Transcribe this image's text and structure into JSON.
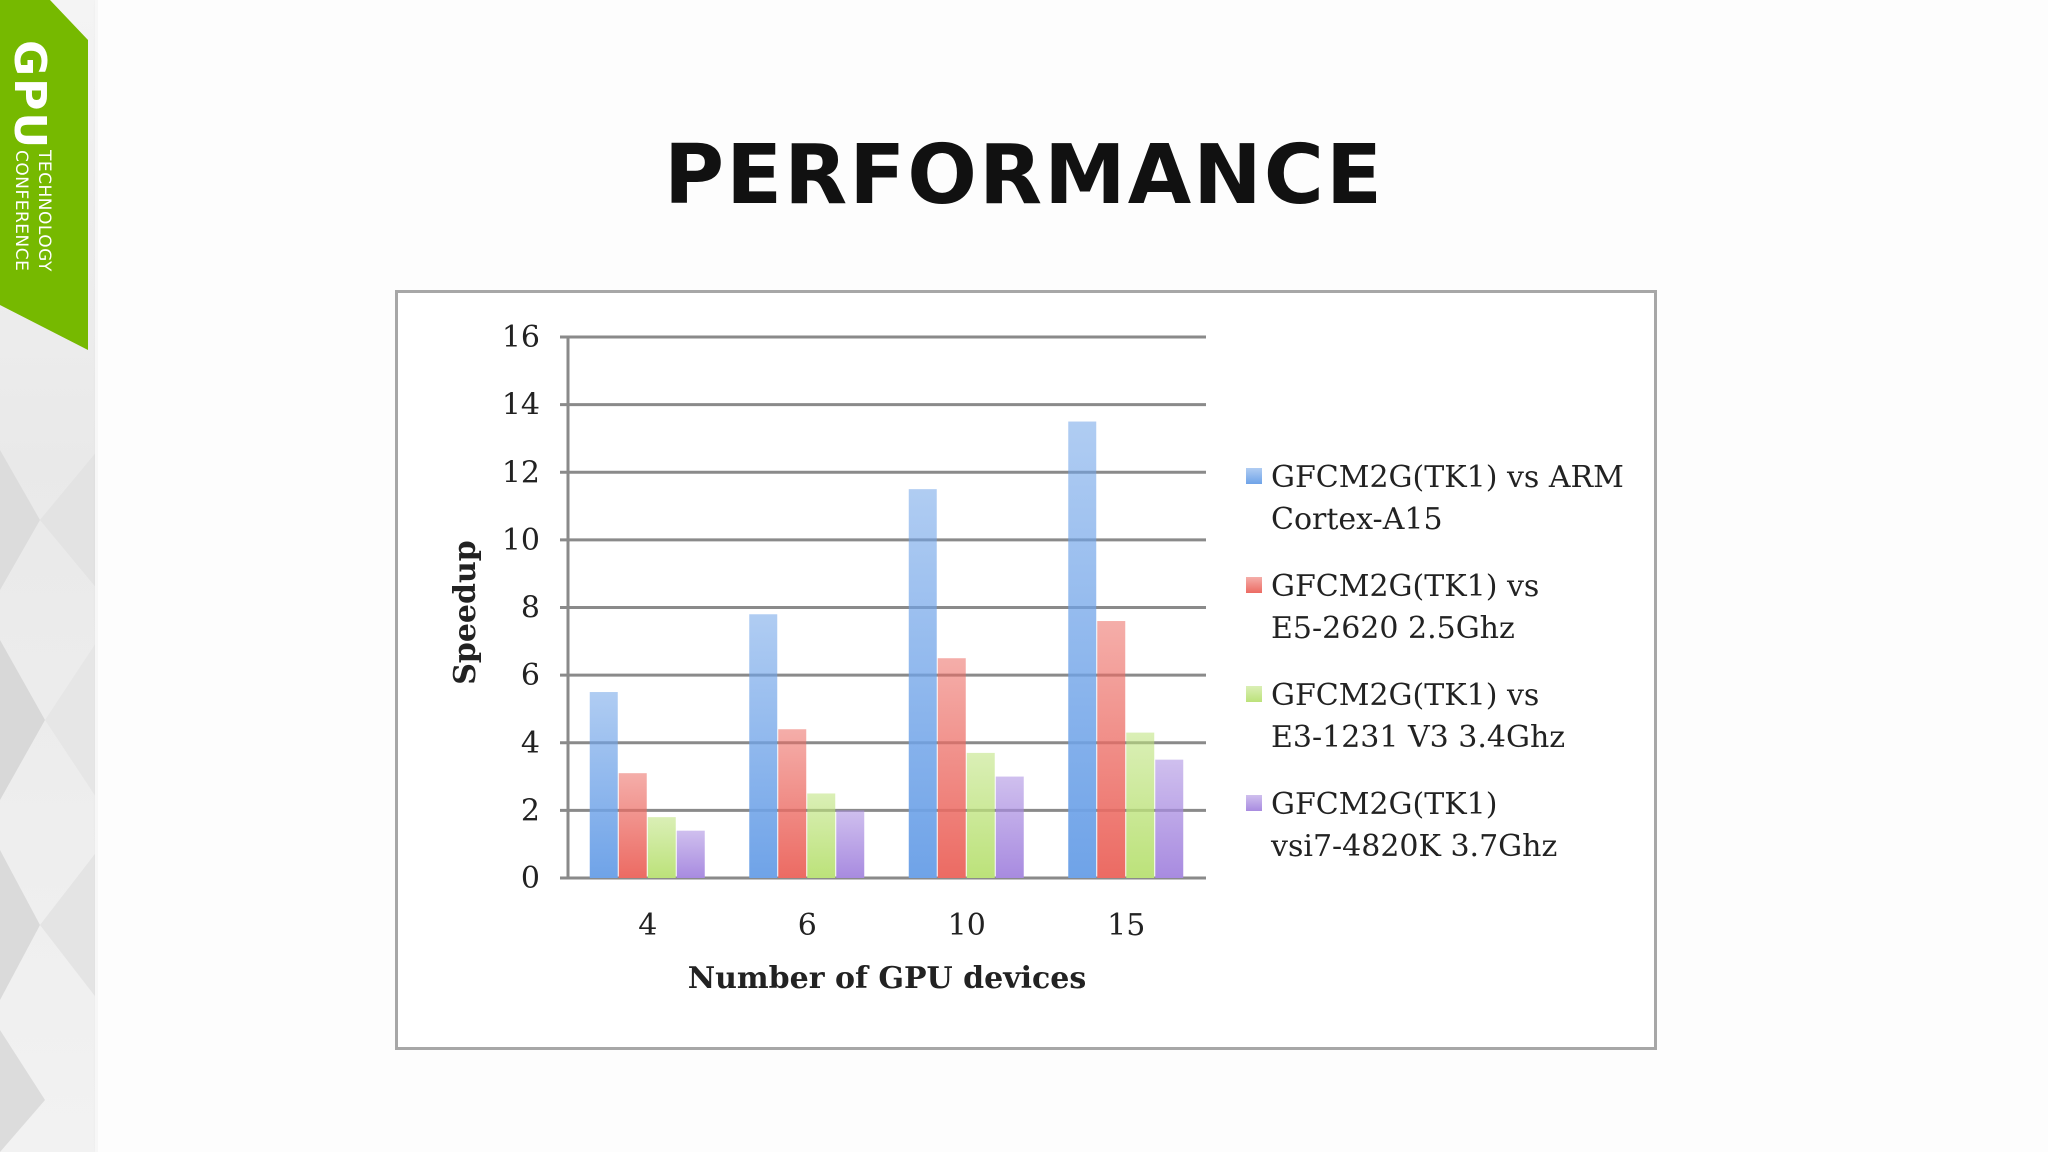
{
  "title": "PERFORMANCE",
  "logo": {
    "big": "GPU",
    "line1": "TECHNOLOGY",
    "line2": "CONFERENCE",
    "color": "#76b900"
  },
  "chart_data": {
    "type": "bar",
    "categories": [
      "4",
      "6",
      "10",
      "15"
    ],
    "series": [
      {
        "name": "GFCM2G(TK1) vs ARM Cortex-A15",
        "legend_lines": [
          "GFCM2G(TK1) vs ARM",
          "Cortex-A15"
        ],
        "color": "#6fa3e8",
        "values": [
          5.5,
          7.8,
          11.5,
          13.5
        ]
      },
      {
        "name": "GFCM2G(TK1) vs E5-2620 2.5Ghz",
        "legend_lines": [
          "GFCM2G(TK1) vs",
          "E5-2620 2.5Ghz"
        ],
        "color": "#ec6b63",
        "values": [
          3.1,
          4.4,
          6.5,
          7.6
        ]
      },
      {
        "name": "GFCM2G(TK1) vs E3-1231 V3 3.4Ghz",
        "legend_lines": [
          "GFCM2G(TK1) vs",
          "E3-1231 V3 3.4Ghz"
        ],
        "color": "#bce27a",
        "values": [
          1.8,
          2.5,
          3.7,
          4.3
        ]
      },
      {
        "name": "GFCM2G(TK1) vsi7-4820K 3.7Ghz",
        "legend_lines": [
          "GFCM2G(TK1)",
          "vsi7-4820K 3.7Ghz"
        ],
        "color": "#a88be0",
        "values": [
          1.4,
          2.0,
          3.0,
          3.5
        ]
      }
    ],
    "xlabel": "Number of GPU devices",
    "ylabel": "Speedup",
    "ylim": [
      0,
      16
    ],
    "yticks": [
      "0",
      "2",
      "4",
      "6",
      "8",
      "10",
      "12",
      "14",
      "16"
    ],
    "grid": true,
    "legend": "right"
  }
}
